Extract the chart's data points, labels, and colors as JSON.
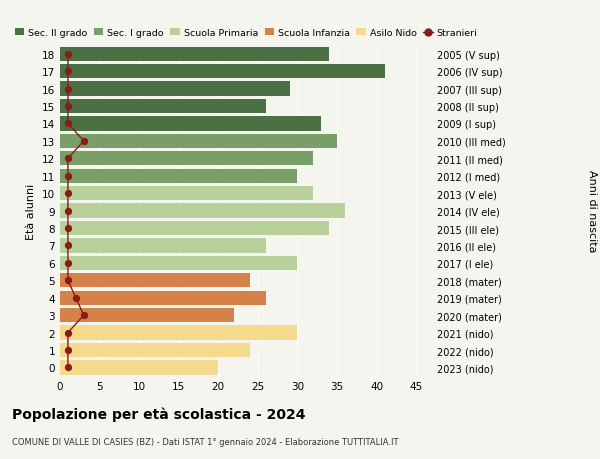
{
  "ages": [
    18,
    17,
    16,
    15,
    14,
    13,
    12,
    11,
    10,
    9,
    8,
    7,
    6,
    5,
    4,
    3,
    2,
    1,
    0
  ],
  "values": [
    34,
    41,
    29,
    26,
    33,
    35,
    32,
    30,
    32,
    36,
    34,
    26,
    30,
    24,
    26,
    22,
    30,
    24,
    20
  ],
  "stranieri": [
    1,
    1,
    1,
    1,
    1,
    3,
    1,
    1,
    1,
    1,
    1,
    1,
    1,
    1,
    2,
    3,
    1,
    1,
    1
  ],
  "right_labels": [
    "2005 (V sup)",
    "2006 (IV sup)",
    "2007 (III sup)",
    "2008 (II sup)",
    "2009 (I sup)",
    "2010 (III med)",
    "2011 (II med)",
    "2012 (I med)",
    "2013 (V ele)",
    "2014 (IV ele)",
    "2015 (III ele)",
    "2016 (II ele)",
    "2017 (I ele)",
    "2018 (mater)",
    "2019 (mater)",
    "2020 (mater)",
    "2021 (nido)",
    "2022 (nido)",
    "2023 (nido)"
  ],
  "bar_colors_ordered": [
    "#4a7044",
    "#4a7044",
    "#4a7044",
    "#4a7044",
    "#4a7044",
    "#7a9e68",
    "#7a9e68",
    "#7a9e68",
    "#b8d09a",
    "#b8d09a",
    "#b8d09a",
    "#b8d09a",
    "#b8d09a",
    "#d4824a",
    "#d4824a",
    "#d4824a",
    "#f5d98c",
    "#f5d98c",
    "#f5d98c"
  ],
  "stranieri_color": "#8b1a1a",
  "legend_labels": [
    "Sec. II grado",
    "Sec. I grado",
    "Scuola Primaria",
    "Scuola Infanzia",
    "Asilo Nido",
    "Stranieri"
  ],
  "legend_colors": [
    "#4a7044",
    "#7a9e68",
    "#b8d09a",
    "#d4824a",
    "#f5d98c",
    "#8b1a1a"
  ],
  "title": "Popolazione per età scolastica - 2024",
  "subtitle": "COMUNE DI VALLE DI CASIES (BZ) - Dati ISTAT 1° gennaio 2024 - Elaborazione TUTTITALIA.IT",
  "ylabel": "Età alunni",
  "ylabel2": "Anni di nascita",
  "xlim": [
    0,
    47
  ],
  "xticks": [
    0,
    5,
    10,
    15,
    20,
    25,
    30,
    35,
    40,
    45
  ],
  "bg_color": "#f5f5f0"
}
